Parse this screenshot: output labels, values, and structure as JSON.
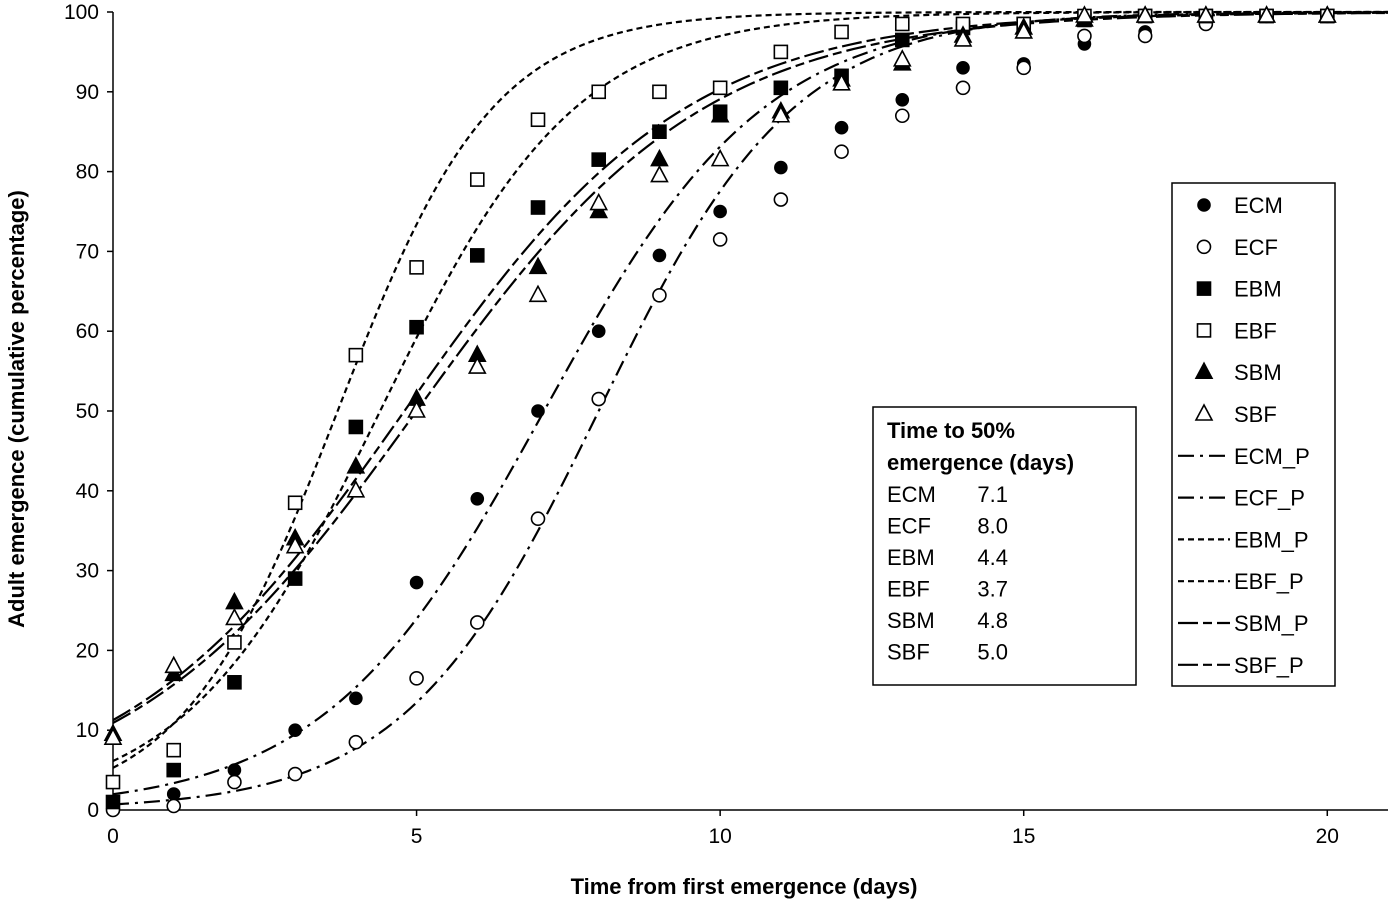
{
  "chart_data": {
    "type": "scatter",
    "title": "",
    "xlabel": "Time from first emergence (days)",
    "ylabel": "Adult emergence (cumulative percentage)",
    "xlim": [
      0,
      21
    ],
    "ylim": [
      0,
      100
    ],
    "xticks": [
      0,
      5,
      10,
      15,
      20
    ],
    "yticks": [
      0,
      10,
      20,
      30,
      40,
      50,
      60,
      70,
      80,
      90,
      100
    ],
    "legend_position": "right",
    "series": [
      {
        "name": "ECM",
        "marker": "circle-filled",
        "x": [
          0,
          1,
          2,
          3,
          4,
          5,
          6,
          7,
          8,
          9,
          10,
          11,
          12,
          13,
          14,
          15,
          16,
          17,
          18,
          19,
          20
        ],
        "values": [
          0.5,
          2,
          5,
          10,
          14,
          28.5,
          39,
          50,
          60,
          69.5,
          75,
          80.5,
          85.5,
          89,
          93,
          93.5,
          96,
          97.5,
          98.5,
          99.5,
          99.5
        ]
      },
      {
        "name": "ECF",
        "marker": "circle-open",
        "x": [
          0,
          1,
          2,
          3,
          4,
          5,
          6,
          7,
          8,
          9,
          10,
          11,
          12,
          13,
          14,
          15,
          16,
          17,
          18,
          19,
          20
        ],
        "values": [
          0,
          0.5,
          3.5,
          4.5,
          8.5,
          16.5,
          23.5,
          36.5,
          51.5,
          64.5,
          71.5,
          76.5,
          82.5,
          87,
          90.5,
          93,
          97,
          97,
          98.5,
          99.5,
          99.5
        ]
      },
      {
        "name": "EBM",
        "marker": "square-filled",
        "x": [
          0,
          1,
          2,
          3,
          4,
          5,
          6,
          7,
          8,
          9,
          10,
          11,
          12,
          13,
          14,
          15,
          16,
          17,
          18,
          19,
          20
        ],
        "values": [
          1,
          5,
          16,
          29,
          48,
          60.5,
          69.5,
          75.5,
          81.5,
          85,
          87.5,
          90.5,
          92,
          96.5,
          98,
          98.5,
          99,
          99.5,
          99.5,
          99.5,
          99.5
        ]
      },
      {
        "name": "EBF",
        "marker": "square-open",
        "x": [
          0,
          1,
          2,
          3,
          4,
          5,
          6,
          7,
          8,
          9,
          10,
          11,
          12,
          13,
          14,
          15,
          16,
          17,
          18,
          19,
          20
        ],
        "values": [
          3.5,
          7.5,
          21,
          38.5,
          57,
          68,
          79,
          86.5,
          90,
          90,
          90.5,
          95,
          97.5,
          98.5,
          98.5,
          98.5,
          99.5,
          99.5,
          99.5,
          99.5,
          99.5
        ]
      },
      {
        "name": "SBM",
        "marker": "triangle-filled",
        "x": [
          0,
          1,
          2,
          3,
          4,
          5,
          6,
          7,
          8,
          9,
          10,
          11,
          12,
          13,
          14,
          15,
          16,
          17,
          18,
          19,
          20
        ],
        "values": [
          9.5,
          17,
          26,
          34,
          43,
          51.5,
          57,
          68,
          75,
          81.5,
          87,
          87.5,
          91.5,
          93.5,
          97,
          98,
          99,
          99.5,
          99.5,
          99.5,
          99.5
        ]
      },
      {
        "name": "SBF",
        "marker": "triangle-open",
        "x": [
          0,
          1,
          2,
          3,
          4,
          5,
          6,
          7,
          8,
          9,
          10,
          11,
          12,
          13,
          14,
          15,
          16,
          17,
          18,
          19,
          20
        ],
        "values": [
          9,
          18,
          24,
          33,
          40,
          50,
          55.5,
          64.5,
          76,
          79.5,
          81.5,
          87,
          91,
          94,
          96.5,
          97.5,
          99.5,
          99.5,
          99.5,
          99.5,
          99.5
        ]
      }
    ],
    "fits": [
      {
        "name": "ECM_P",
        "style": "dash-dot",
        "t50": 7.1,
        "k": 0.55
      },
      {
        "name": "ECF_P",
        "style": "dash-dot",
        "t50": 8.0,
        "k": 0.62
      },
      {
        "name": "EBM_P",
        "style": "short-dash",
        "t50": 4.4,
        "k": 0.62
      },
      {
        "name": "EBF_P",
        "style": "short-dash",
        "t50": 3.7,
        "k": 0.78
      },
      {
        "name": "SBM_P",
        "style": "long-dash-short",
        "t50": 4.8,
        "k": 0.43
      },
      {
        "name": "SBF_P",
        "style": "long-dash-short",
        "t50": 5.0,
        "k": 0.42
      }
    ],
    "annotation": {
      "title_line1": "Time to 50%",
      "title_line2": "emergence (days)",
      "rows": [
        {
          "label": "ECM",
          "value": "7.1"
        },
        {
          "label": "ECF",
          "value": "8.0"
        },
        {
          "label": "EBM",
          "value": "4.4"
        },
        {
          "label": "EBF",
          "value": "3.7"
        },
        {
          "label": "SBM",
          "value": "4.8"
        },
        {
          "label": "SBF",
          "value": "5.0"
        }
      ]
    }
  }
}
